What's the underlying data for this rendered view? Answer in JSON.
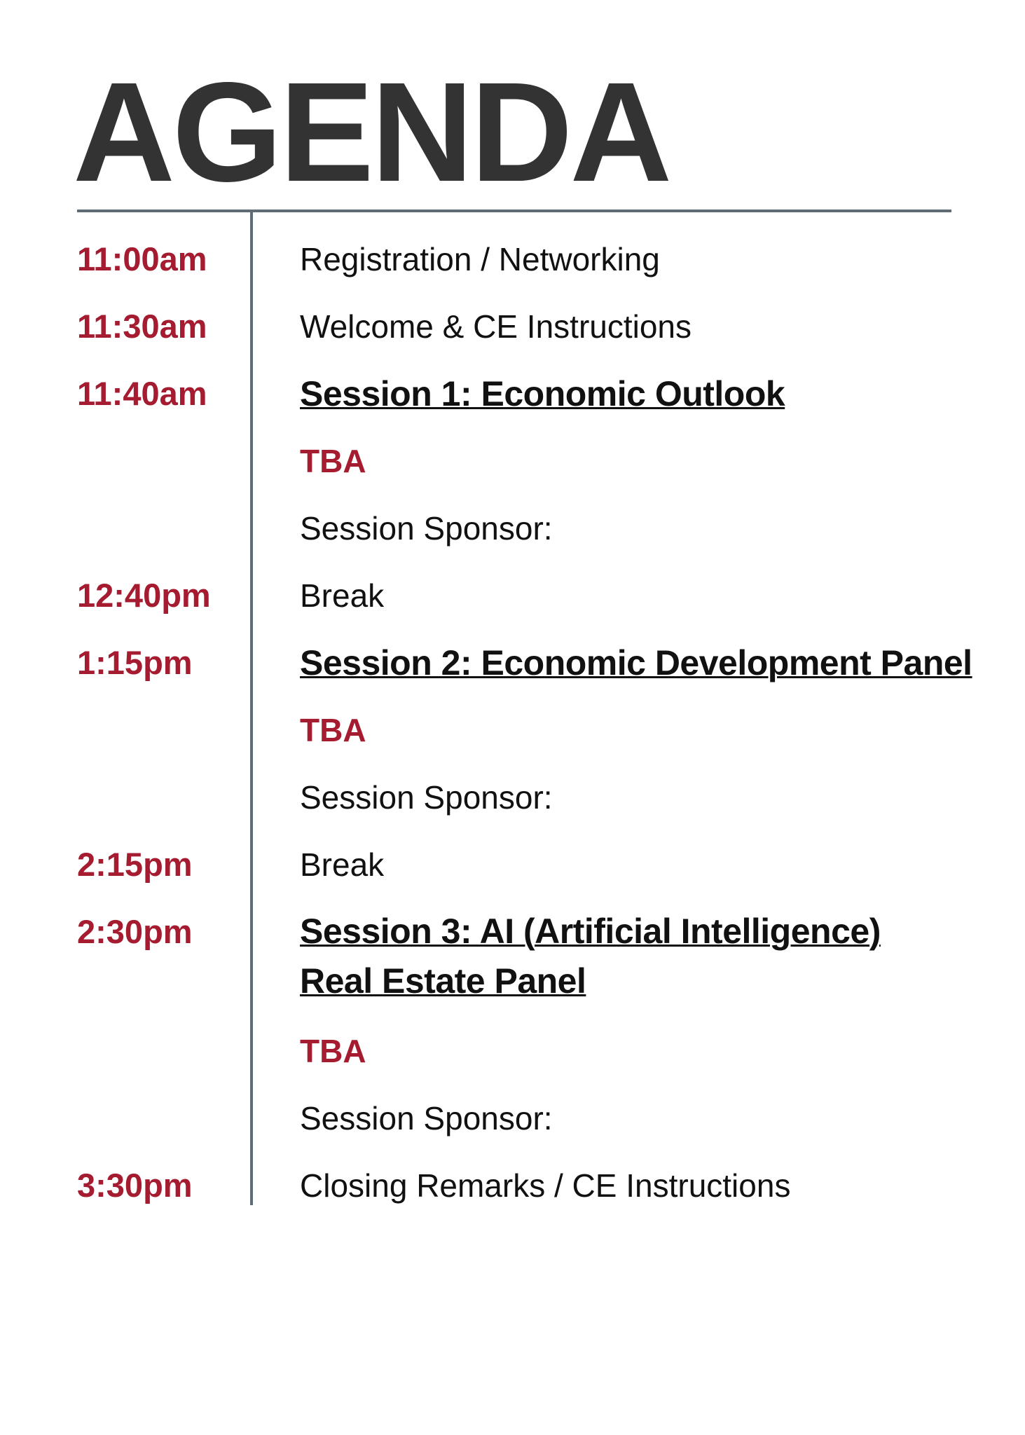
{
  "header": {
    "title": "AGENDA"
  },
  "agenda": [
    {
      "time": "11:00am",
      "activity": "Registration / Networking"
    },
    {
      "time": "11:30am",
      "activity": "Welcome & CE Instructions"
    },
    {
      "time": "11:40am",
      "session": "Session 1: Economic Outlook",
      "speaker": "TBA",
      "sponsor": "Session Sponsor:"
    },
    {
      "time": "12:40pm",
      "activity": "Break"
    },
    {
      "time": "1:15pm",
      "session": "Session 2: Economic Development Panel",
      "speaker": "TBA",
      "sponsor": "Session Sponsor:"
    },
    {
      "time": "2:15pm",
      "activity": "Break"
    },
    {
      "time": "2:30pm",
      "session": [
        "Session 3: AI (Artificial Intelligence)",
        "Real Estate Panel"
      ],
      "speaker": "TBA",
      "sponsor": "Session Sponsor:"
    },
    {
      "time": "3:30pm",
      "activity": "Closing Remarks / CE Instructions"
    }
  ]
}
